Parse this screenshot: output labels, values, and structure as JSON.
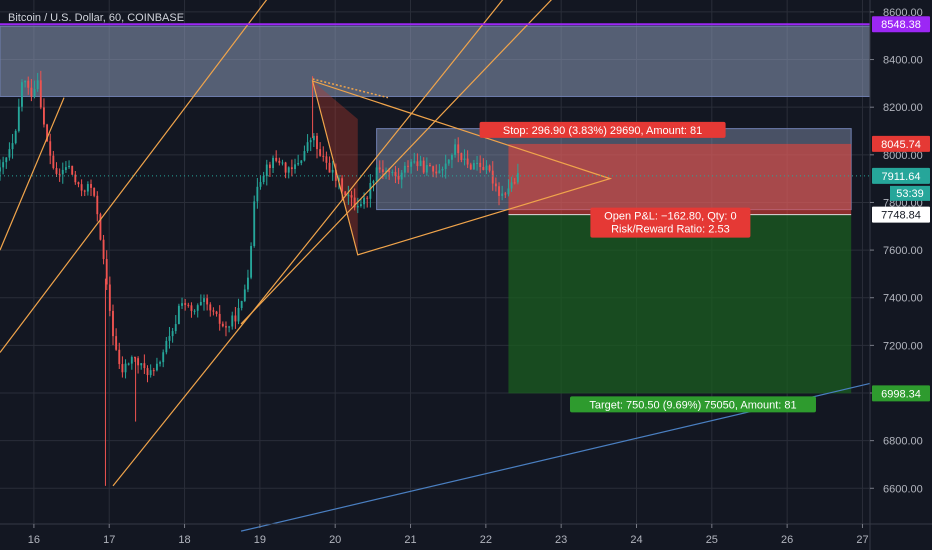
{
  "chart_data": {
    "type": "candlestick",
    "title": "Bitcoin / U.S. Dollar, 60, COINBASE",
    "ylim": [
      6450,
      8650
    ],
    "xlim": [
      15.55,
      27.1
    ],
    "y_ticks": [
      6600,
      6800,
      7000,
      7200,
      7400,
      7600,
      7800,
      8000,
      8200,
      8400,
      8600
    ],
    "y_tick_labels": [
      "6600.00",
      "6800.00",
      "7000.00",
      "7200.00",
      "7400.00",
      "7600.00",
      "7800.00",
      "8000.00",
      "8200.00",
      "8400.00",
      "8600.00"
    ],
    "x_ticks": [
      16,
      17,
      18,
      19,
      20,
      21,
      22,
      23,
      24,
      25,
      26,
      27
    ],
    "x_tick_labels": [
      "16",
      "17",
      "18",
      "19",
      "20",
      "21",
      "22",
      "23",
      "24",
      "25",
      "26",
      "27"
    ],
    "colors": {
      "up": "#26a69a",
      "down": "#ef5350",
      "background": "#131722",
      "grid": "#2a2e39",
      "trendline": "#f0a44b",
      "blue_line": "#4a7fc1",
      "purple_line": "#9c27f5",
      "zone": "#8c9ab8",
      "stop_zone": "#f44336",
      "target_zone": "#1b5e20"
    },
    "price_path": [
      [
        15.55,
        7930
      ],
      [
        15.75,
        8060
      ],
      [
        15.85,
        8330
      ],
      [
        15.95,
        8250
      ],
      [
        16.05,
        8320
      ],
      [
        16.15,
        8080
      ],
      [
        16.3,
        7900
      ],
      [
        16.45,
        7960
      ],
      [
        16.6,
        7850
      ],
      [
        16.75,
        7870
      ],
      [
        16.85,
        7750
      ],
      [
        16.95,
        7480
      ],
      [
        17.05,
        7250
      ],
      [
        17.15,
        7080
      ],
      [
        17.3,
        7150
      ],
      [
        17.45,
        7100
      ],
      [
        17.6,
        7080
      ],
      [
        17.75,
        7200
      ],
      [
        17.85,
        7250
      ],
      [
        17.95,
        7400
      ],
      [
        18.1,
        7330
      ],
      [
        18.25,
        7380
      ],
      [
        18.4,
        7320
      ],
      [
        18.55,
        7270
      ],
      [
        18.65,
        7310
      ],
      [
        18.75,
        7360
      ],
      [
        18.85,
        7520
      ],
      [
        18.95,
        7870
      ],
      [
        19.1,
        7960
      ],
      [
        19.25,
        7980
      ],
      [
        19.4,
        7920
      ],
      [
        19.55,
        7990
      ],
      [
        19.7,
        8080
      ],
      [
        19.8,
        7990
      ],
      [
        19.9,
        7960
      ],
      [
        20.0,
        7900
      ],
      [
        20.1,
        7860
      ],
      [
        20.25,
        7790
      ],
      [
        20.4,
        7810
      ],
      [
        20.55,
        7950
      ],
      [
        20.7,
        7930
      ],
      [
        20.85,
        7900
      ],
      [
        21.0,
        7980
      ],
      [
        21.15,
        7950
      ],
      [
        21.3,
        7930
      ],
      [
        21.45,
        7960
      ],
      [
        21.6,
        8030
      ],
      [
        21.75,
        7950
      ],
      [
        21.9,
        7970
      ],
      [
        22.05,
        7920
      ],
      [
        22.2,
        7830
      ],
      [
        22.35,
        7880
      ],
      [
        22.45,
        7912
      ]
    ],
    "candles_per_day": 24,
    "annotations": {
      "current_price": 7911.64,
      "current_price_label": "7911.64",
      "countdown_label": "53:39",
      "entry_price": 7748.84,
      "entry_price_label": "7748.84",
      "stop_price": 8045.74,
      "stop_price_label": "8045.74",
      "target_price": 6998.34,
      "target_price_label": "6998.34",
      "resistance_price": 8548.38,
      "resistance_price_label": "8548.38",
      "stop_text": "Stop: 296.90 (3.83%) 29690, Amount: 81",
      "pnl_text": "Open P&L: −162.80, Qty: 0",
      "rr_text": "Risk/Reward Ratio: 2.53",
      "target_text": "Target: 750.50 (9.69%) 75050, Amount: 81",
      "position_x": [
        22.3,
        26.85
      ]
    },
    "drawings": {
      "rectangles": [
        {
          "name": "resistance-zone",
          "x": [
            15.55,
            27.1
          ],
          "y": [
            8245,
            8540
          ]
        },
        {
          "name": "consolidation-box",
          "x": [
            20.55,
            26.85
          ],
          "y": [
            7770,
            8110
          ]
        }
      ],
      "lines": [
        {
          "name": "trend-line-1",
          "from": [
            15.55,
            7600
          ],
          "to": [
            16.4,
            8240
          ]
        },
        {
          "name": "trend-line-2",
          "from": [
            15.55,
            7170
          ],
          "to": [
            19.35,
            8760
          ]
        },
        {
          "name": "trend-line-3",
          "from": [
            17.05,
            6610
          ],
          "to": [
            22.5,
            8760
          ]
        },
        {
          "name": "trend-line-4",
          "from": [
            18.75,
            7290
          ],
          "to": [
            23.2,
            8760
          ]
        },
        {
          "name": "blue-support-line",
          "from": [
            18.75,
            6420
          ],
          "to": [
            27.1,
            7040
          ]
        }
      ],
      "triangle": {
        "a": [
          19.7,
          8310
        ],
        "b": [
          20.3,
          7580
        ],
        "c": [
          23.65,
          7900
        ]
      },
      "triangle_fill": {
        "a": [
          19.7,
          8310
        ],
        "b": [
          20.3,
          7580
        ],
        "c": [
          20.3,
          8150
        ]
      }
    }
  }
}
